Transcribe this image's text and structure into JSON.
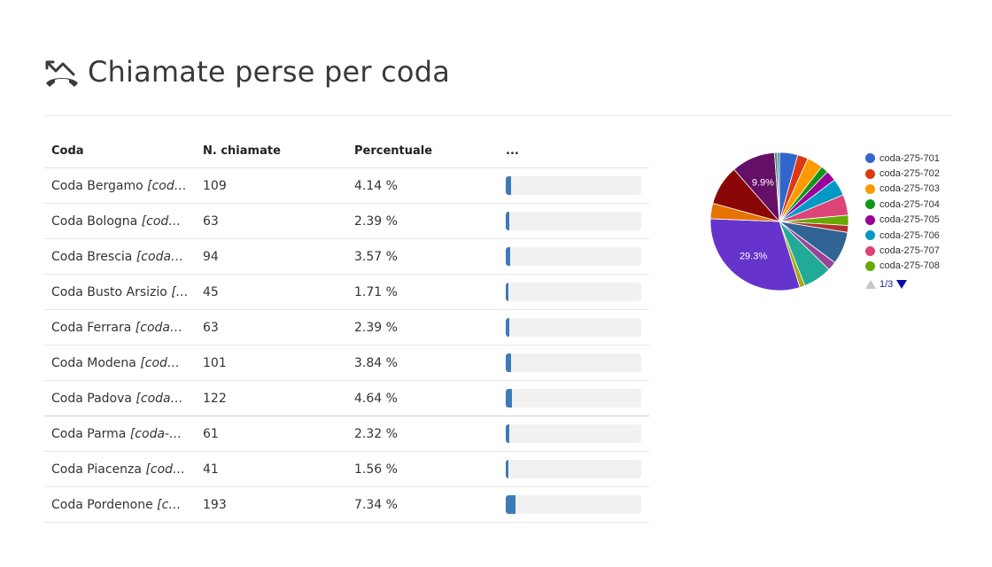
{
  "header": {
    "title": "Chiamate perse per coda",
    "icon": "missed-call-icon"
  },
  "table": {
    "columns": [
      "Coda",
      "N. chiamate",
      "Percentuale",
      "..."
    ],
    "rows": [
      {
        "name": "Coda Bergamo",
        "name_suffix": "[cod…",
        "count": "109",
        "percent": "4.14 %",
        "bar": 0.0414
      },
      {
        "name": "Coda Bologna",
        "name_suffix": "[cod…",
        "count": "63",
        "percent": "2.39 %",
        "bar": 0.0239
      },
      {
        "name": "Coda Brescia",
        "name_suffix": "[coda…",
        "count": "94",
        "percent": "3.57 %",
        "bar": 0.0357
      },
      {
        "name": "Coda Busto Arsizio",
        "name_suffix": "[…",
        "count": "45",
        "percent": "1.71 %",
        "bar": 0.0171
      },
      {
        "name": "Coda Ferrara",
        "name_suffix": "[coda…",
        "count": "63",
        "percent": "2.39 %",
        "bar": 0.0239
      },
      {
        "name": "Coda Modena",
        "name_suffix": "[cod…",
        "count": "101",
        "percent": "3.84 %",
        "bar": 0.0384
      },
      {
        "name": "Coda Padova",
        "name_suffix": "[coda…",
        "count": "122",
        "percent": "4.64 %",
        "bar": 0.0464
      },
      {
        "name": "Coda Parma",
        "name_suffix": "[coda-…",
        "count": "61",
        "percent": "2.32 %",
        "bar": 0.0232
      },
      {
        "name": "Coda Piacenza",
        "name_suffix": "[cod…",
        "count": "41",
        "percent": "1.56 %",
        "bar": 0.0156
      },
      {
        "name": "Coda Pordenone",
        "name_suffix": "[c…",
        "count": "193",
        "percent": "7.34 %",
        "bar": 0.0734
      }
    ]
  },
  "pie": {
    "labels": {
      "big": "29.3%",
      "medium": "9.9%"
    },
    "slices": [
      {
        "value": 4.14,
        "color": "#3366cc"
      },
      {
        "value": 2.39,
        "color": "#dc3912"
      },
      {
        "value": 3.57,
        "color": "#ff9900"
      },
      {
        "value": 1.71,
        "color": "#109618"
      },
      {
        "value": 2.39,
        "color": "#990099"
      },
      {
        "value": 3.84,
        "color": "#0099c6"
      },
      {
        "value": 4.64,
        "color": "#dd4477"
      },
      {
        "value": 2.32,
        "color": "#66aa00"
      },
      {
        "value": 1.56,
        "color": "#b82e2e"
      },
      {
        "value": 7.34,
        "color": "#316395"
      },
      {
        "value": 2.0,
        "color": "#994499"
      },
      {
        "value": 6.5,
        "color": "#22aa99"
      },
      {
        "value": 1.2,
        "color": "#aaaa11"
      },
      {
        "value": 29.3,
        "color": "#6633cc"
      },
      {
        "value": 3.5,
        "color": "#e67300"
      },
      {
        "value": 9.0,
        "color": "#8b0707"
      },
      {
        "value": 9.9,
        "color": "#651067"
      },
      {
        "value": 0.6,
        "color": "#329262"
      },
      {
        "value": 0.5,
        "color": "#5574a6"
      }
    ]
  },
  "legend": {
    "items": [
      {
        "label": "coda-275-701",
        "color": "#3366cc"
      },
      {
        "label": "coda-275-702",
        "color": "#dc3912"
      },
      {
        "label": "coda-275-703",
        "color": "#ff9900"
      },
      {
        "label": "coda-275-704",
        "color": "#109618"
      },
      {
        "label": "coda-275-705",
        "color": "#990099"
      },
      {
        "label": "coda-275-706",
        "color": "#0099c6"
      },
      {
        "label": "coda-275-707",
        "color": "#dd4477"
      },
      {
        "label": "coda-275-708",
        "color": "#66aa00"
      }
    ],
    "page": "1/3"
  }
}
